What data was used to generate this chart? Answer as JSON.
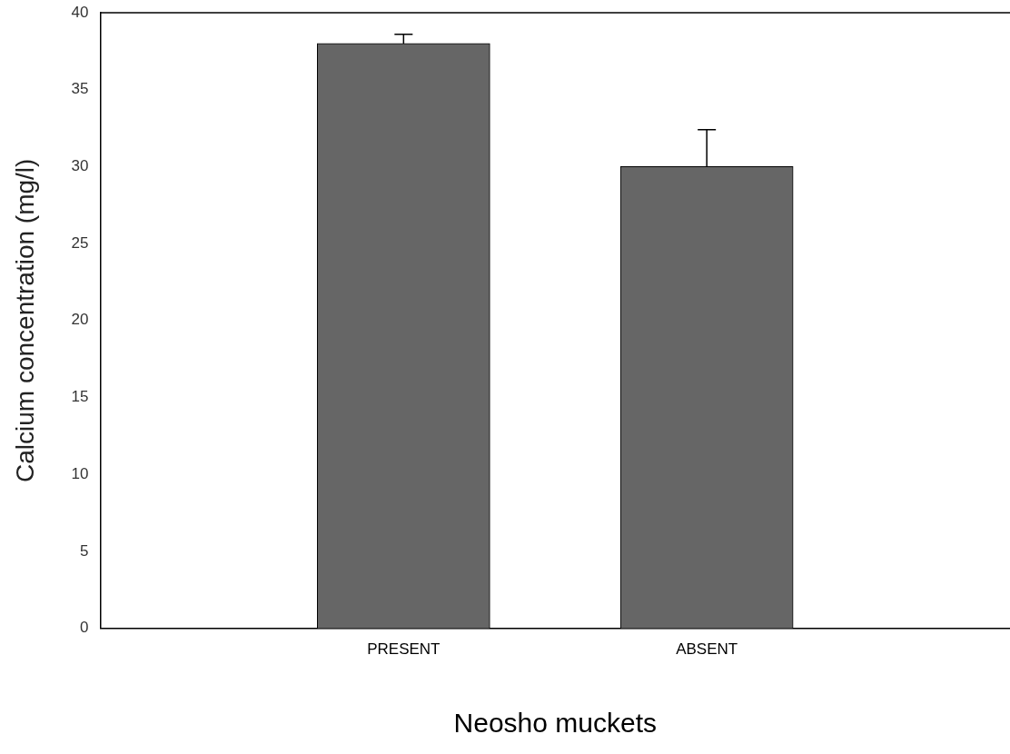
{
  "chart_data": {
    "type": "bar",
    "xlabel": "Neosho muckets",
    "ylabel": "Calcium concentration (mg/l)",
    "categories": [
      "PRESENT",
      "ABSENT"
    ],
    "values": [
      38,
      30
    ],
    "errors": [
      [
        38,
        38.6
      ],
      [
        30,
        32.4
      ]
    ],
    "color": "#666666",
    "ylim": [
      0,
      40
    ],
    "yticks": [
      0,
      5,
      10,
      15,
      20,
      25,
      30,
      35,
      40
    ],
    "grid": false,
    "legend": false
  }
}
